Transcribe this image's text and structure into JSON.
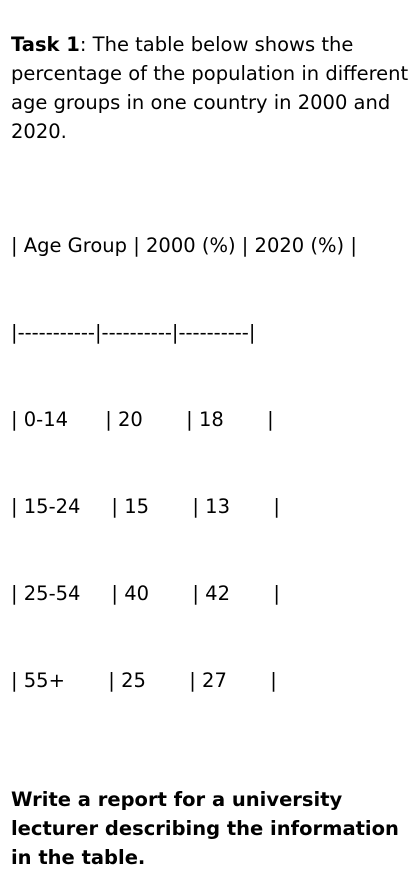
{
  "task": {
    "label": "Task 1",
    "colon": ":",
    "text": " The table below shows the percentage of the population in different age groups in one country in 2000 and 2020."
  },
  "table_lines": [
    "| Age Group | 2000 (%) | 2020 (%) |",
    "|-----------|----------|----------|",
    "| 0-14      | 20       | 18       |",
    "| 15-24     | 15       | 13       |",
    "| 25-54     | 40       | 42       |",
    "| 55+       | 25       | 27       |"
  ],
  "instruction": "Write a report for a university lecturer describing the information in the table."
}
